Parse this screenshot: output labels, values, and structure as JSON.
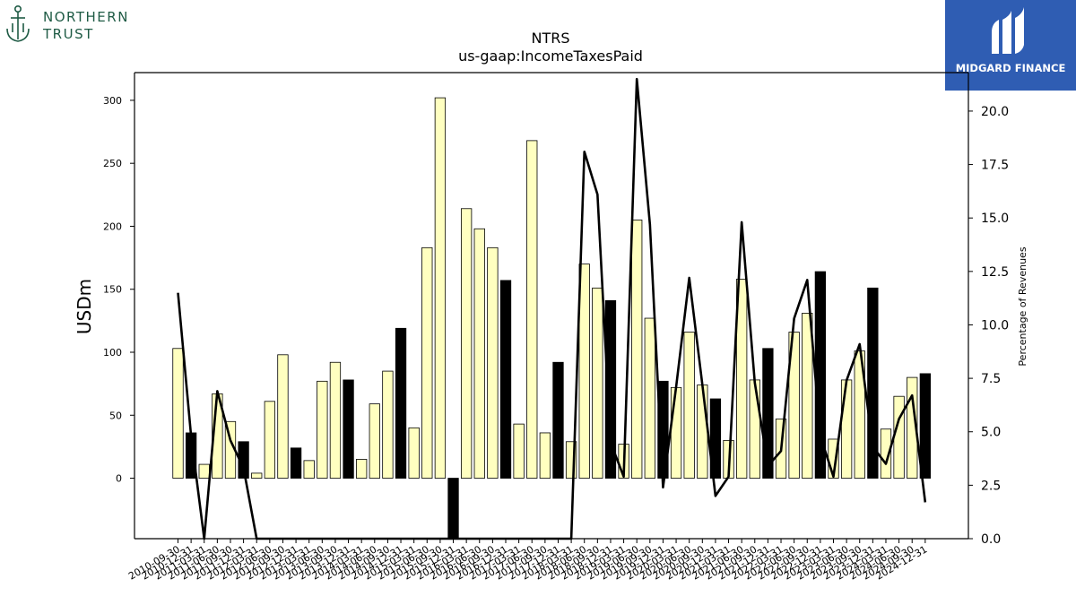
{
  "logos": {
    "left_line1": "NORTHERN",
    "left_line2": "TRUST",
    "right_text": "MIDGARD FINANCE"
  },
  "colors": {
    "bar_fill": "#ffffc0",
    "bar_fill_highlight": "#000000",
    "line": "#000000",
    "right_logo_bg": "#2f5db3",
    "left_logo_green": "#1f5b45"
  },
  "chart_data": {
    "type": "bar",
    "title": "NTRS",
    "subtitle": "us-gaap:IncomeTaxesPaid",
    "ylabel": "USDm",
    "y2label": "Percentage of Revenues",
    "ylim": [
      -48,
      322
    ],
    "y2lim": [
      0,
      21.8
    ],
    "yticks": [
      0,
      50,
      100,
      150,
      200,
      250,
      300
    ],
    "y2ticks": [
      0.0,
      2.5,
      5.0,
      7.5,
      10.0,
      12.5,
      15.0,
      17.5,
      20.0
    ],
    "y2tick_labels": [
      "0.0",
      "2.5",
      "5.0",
      "7.5",
      "10.0",
      "12.5",
      "15.0",
      "17.5",
      "20.0"
    ],
    "categories": [
      "2010-09-30",
      "2010-12-31",
      "2011-03-31",
      "2011-06-30",
      "2011-09-30",
      "2011-12-31",
      "2012-03-31",
      "2012-06-30",
      "2012-09-30",
      "2012-12-31",
      "2013-03-31",
      "2013-06-30",
      "2013-09-30",
      "2013-12-31",
      "2014-03-31",
      "2014-06-30",
      "2014-09-30",
      "2014-12-31",
      "2015-03-31",
      "2015-06-30",
      "2015-09-30",
      "2015-12-31",
      "2016-03-31",
      "2016-06-30",
      "2016-09-30",
      "2016-12-31",
      "2017-03-31",
      "2017-06-30",
      "2017-09-30",
      "2017-12-31",
      "2018-03-31",
      "2018-06-30",
      "2018-09-30",
      "2018-12-31",
      "2019-03-31",
      "2019-06-30",
      "2019-09-30",
      "2019-12-31",
      "2020-03-31",
      "2020-06-30",
      "2020-09-30",
      "2020-12-31",
      "2021-03-31",
      "2021-06-30",
      "2021-09-30",
      "2021-12-31",
      "2022-03-31",
      "2022-06-30",
      "2022-09-30",
      "2022-12-31",
      "2023-03-31",
      "2023-06-30",
      "2023-09-30",
      "2023-12-31",
      "2024-03-31",
      "2024-06-30",
      "2024-09-30",
      "2024-12-31"
    ],
    "xtick_labels": [
      "2010-09-30",
      "2010-12-31",
      "2011-03-31",
      "2011-06-30",
      "2011-09-30",
      "2011-12-31",
      "2012-03-31",
      "2012-06-30",
      "2012-09-30",
      "2012-12-31",
      "2013-03-31",
      "2013-06-30",
      "2013-09-30",
      "2013-12-31",
      "2014-03-31",
      "2014-06-30",
      "2014-09-30",
      "2014-12-31",
      "2015-03-31",
      "2015-06-30",
      "2015-09-30",
      "2015-12-31",
      "2016-03-31",
      "2016-06-30",
      "2016-09-30",
      "2016-12-31",
      "2017-03-31",
      "2017-06-30",
      "2017-09-30",
      "2017-12-31",
      "2018-03-31",
      "2018-06-30",
      "2018-09-30",
      "2018-12-31",
      "2019-03-31",
      "2019-06-30",
      "2019-09-30",
      "2019-12-31",
      "2020-03-31",
      "2020-06-30",
      "2020-09-30",
      "2020-12-31",
      "2021-03-31",
      "2021-06-30",
      "2021-09-30",
      "2021-12-31",
      "2022-03-31",
      "2022-06-30",
      "2022-09-30",
      "2022-12-31",
      "2023-03-31",
      "2023-06-30",
      "2023-09-30",
      "2023-12-31",
      "2024-03-31",
      "2024-06-30",
      "2024-09-30",
      "2024-12-31"
    ],
    "values": [
      103,
      36,
      11,
      67,
      45,
      29,
      4,
      61,
      98,
      24,
      14,
      77,
      92,
      78,
      15,
      59,
      85,
      119,
      40,
      183,
      302,
      -48,
      214,
      198,
      183,
      157,
      43,
      268,
      36,
      92,
      29,
      170,
      151,
      141,
      27,
      205,
      127,
      77,
      72,
      116,
      74,
      63,
      30,
      158,
      78,
      103,
      47,
      116,
      131,
      164,
      31,
      78,
      101,
      151,
      39,
      65,
      80,
      83
    ],
    "highlight_quarter": "12-31",
    "line_series_values": [
      11.5,
      4.8,
      0.0,
      6.9,
      4.6,
      3.3,
      0.0,
      0.0,
      0.0,
      0.0,
      0.0,
      0.0,
      0.0,
      0.0,
      0.0,
      0.0,
      0.0,
      0.0,
      0.0,
      0.0,
      0.0,
      0.0,
      0.0,
      0.0,
      0.0,
      0.0,
      0.0,
      0.0,
      0.0,
      0.0,
      0.0,
      18.1,
      16.1,
      4.5,
      2.9,
      21.5,
      14.7,
      2.4,
      7.1,
      12.2,
      7.2,
      2.0,
      2.9,
      14.8,
      7.3,
      3.4,
      4.1,
      10.3,
      12.1,
      4.8,
      2.9,
      7.4,
      9.1,
      4.3,
      3.5,
      5.6,
      6.7,
      1.7
    ],
    "grid": false
  }
}
